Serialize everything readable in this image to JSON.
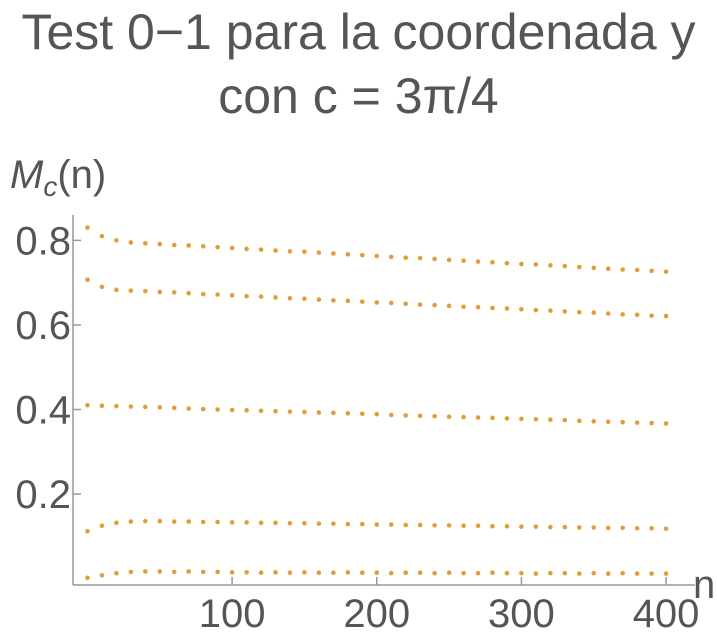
{
  "chart_data": {
    "type": "scatter",
    "title": "Test 0−1 para la coordenada y con c = 3π/4",
    "ylabel": {
      "symbol": "M",
      "subscript": "c",
      "arg": "(n)"
    },
    "xlabel": "n",
    "xlim": [
      -10,
      420
    ],
    "ylim": [
      -0.015,
      0.86
    ],
    "xticks": [
      100,
      200,
      300,
      400
    ],
    "yticks": [
      0.2,
      0.4,
      0.6,
      0.8
    ],
    "x": [
      0,
      10,
      20,
      30,
      40,
      50,
      60,
      70,
      80,
      90,
      100,
      110,
      120,
      130,
      140,
      150,
      160,
      170,
      180,
      190,
      200,
      210,
      220,
      230,
      240,
      250,
      260,
      270,
      280,
      290,
      300,
      310,
      320,
      330,
      340,
      350,
      360,
      370,
      380,
      390,
      400
    ],
    "series": [
      {
        "color": "#e19d3c",
        "values": [
          0.83,
          0.81,
          0.8,
          0.795,
          0.793,
          0.791,
          0.789,
          0.788,
          0.786,
          0.784,
          0.782,
          0.78,
          0.778,
          0.776,
          0.774,
          0.773,
          0.771,
          0.769,
          0.767,
          0.765,
          0.763,
          0.761,
          0.759,
          0.758,
          0.756,
          0.754,
          0.752,
          0.75,
          0.748,
          0.746,
          0.744,
          0.743,
          0.741,
          0.739,
          0.737,
          0.735,
          0.733,
          0.731,
          0.73,
          0.728,
          0.726
        ]
      },
      {
        "color": "#e19d3c",
        "values": [
          0.707,
          0.69,
          0.683,
          0.681,
          0.68,
          0.678,
          0.677,
          0.675,
          0.673,
          0.672,
          0.67,
          0.668,
          0.667,
          0.665,
          0.663,
          0.662,
          0.66,
          0.658,
          0.657,
          0.655,
          0.653,
          0.652,
          0.65,
          0.648,
          0.647,
          0.645,
          0.643,
          0.642,
          0.64,
          0.639,
          0.637,
          0.635,
          0.634,
          0.632,
          0.63,
          0.629,
          0.627,
          0.625,
          0.624,
          0.622,
          0.621
        ]
      },
      {
        "color": "#e19d3c",
        "values": [
          0.41,
          0.409,
          0.408,
          0.407,
          0.406,
          0.405,
          0.404,
          0.402,
          0.401,
          0.4,
          0.399,
          0.398,
          0.397,
          0.396,
          0.395,
          0.394,
          0.393,
          0.392,
          0.391,
          0.39,
          0.389,
          0.387,
          0.386,
          0.385,
          0.384,
          0.383,
          0.382,
          0.381,
          0.38,
          0.379,
          0.378,
          0.377,
          0.376,
          0.375,
          0.373,
          0.372,
          0.371,
          0.37,
          0.369,
          0.368,
          0.367
        ]
      },
      {
        "color": "#e19d3c",
        "values": [
          0.112,
          0.125,
          0.132,
          0.135,
          0.136,
          0.136,
          0.135,
          0.135,
          0.134,
          0.134,
          0.133,
          0.133,
          0.132,
          0.132,
          0.131,
          0.131,
          0.13,
          0.13,
          0.129,
          0.129,
          0.128,
          0.128,
          0.127,
          0.127,
          0.126,
          0.126,
          0.125,
          0.125,
          0.124,
          0.124,
          0.123,
          0.123,
          0.122,
          0.122,
          0.121,
          0.121,
          0.12,
          0.12,
          0.119,
          0.119,
          0.118
        ]
      },
      {
        "color": "#e19d3c",
        "values": [
          0.002,
          0.008,
          0.013,
          0.016,
          0.017,
          0.017,
          0.016,
          0.017,
          0.016,
          0.016,
          0.015,
          0.015,
          0.014,
          0.015,
          0.014,
          0.015,
          0.014,
          0.014,
          0.015,
          0.014,
          0.014,
          0.013,
          0.014,
          0.014,
          0.013,
          0.014,
          0.013,
          0.013,
          0.014,
          0.013,
          0.013,
          0.012,
          0.013,
          0.013,
          0.012,
          0.013,
          0.012,
          0.013,
          0.012,
          0.012,
          0.012
        ]
      }
    ]
  }
}
